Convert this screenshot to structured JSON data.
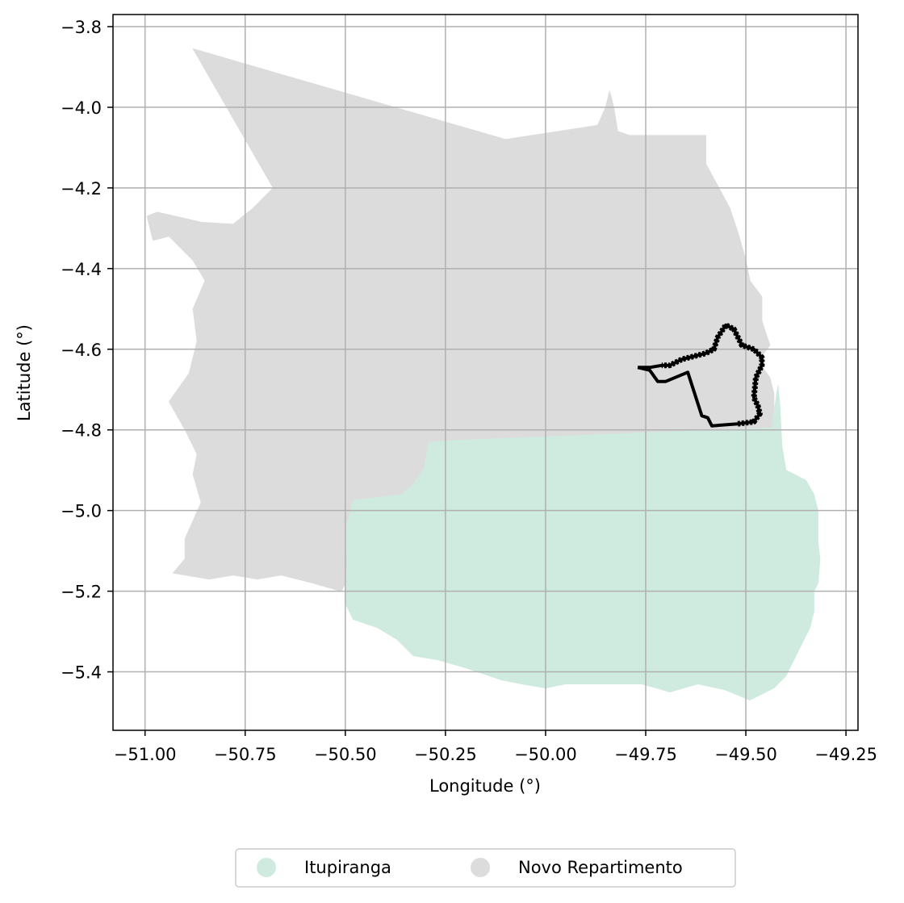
{
  "chart_data": {
    "type": "map",
    "xlabel": "Longitude (°)",
    "ylabel": "Latitude (°)",
    "xlim": [
      -51.08,
      -49.22
    ],
    "ylim": [
      -5.545,
      -3.77
    ],
    "grid": true,
    "x_ticks": [
      -51.0,
      -50.75,
      -50.5,
      -50.25,
      -50.0,
      -49.75,
      -49.5,
      -49.25
    ],
    "x_tick_labels": [
      "−51.00",
      "−50.75",
      "−50.50",
      "−50.25",
      "−50.00",
      "−49.75",
      "−49.50",
      "−49.25"
    ],
    "y_ticks": [
      -3.8,
      -4.0,
      -4.2,
      -4.4,
      -4.6,
      -4.8,
      -5.0,
      -5.2,
      -5.4
    ],
    "y_tick_labels": [
      "−3.8",
      "−4.0",
      "−4.2",
      "−4.4",
      "−4.6",
      "−4.8",
      "−5.0",
      "−5.2",
      "−5.4"
    ],
    "legend_placement": "below",
    "legend": [
      {
        "label": "Itupiranga",
        "color": "#cfeadf"
      },
      {
        "label": "Novo Repartimento",
        "color": "#dcdcdc"
      }
    ],
    "regions": [
      {
        "name": "Novo Repartimento",
        "color": "#dcdcdc",
        "coords": [
          [
            -50.88,
            -3.855
          ],
          [
            -50.1,
            -4.08
          ],
          [
            -49.87,
            -4.045
          ],
          [
            -49.85,
            -4.0
          ],
          [
            -49.84,
            -3.96
          ],
          [
            -49.83,
            -4.0
          ],
          [
            -49.82,
            -4.06
          ],
          [
            -49.79,
            -4.07
          ],
          [
            -49.6,
            -4.07
          ],
          [
            -49.6,
            -4.14
          ],
          [
            -49.54,
            -4.25
          ],
          [
            -49.52,
            -4.31
          ],
          [
            -49.5,
            -4.38
          ],
          [
            -49.49,
            -4.43
          ],
          [
            -49.46,
            -4.47
          ],
          [
            -49.46,
            -4.53
          ],
          [
            -49.44,
            -4.59
          ],
          [
            -49.47,
            -4.63
          ],
          [
            -49.44,
            -4.67
          ],
          [
            -49.43,
            -4.71
          ],
          [
            -49.43,
            -4.75
          ],
          [
            -49.435,
            -4.795
          ],
          [
            -50.2,
            -4.825
          ],
          [
            -50.29,
            -4.83
          ],
          [
            -50.305,
            -4.9
          ],
          [
            -50.33,
            -4.935
          ],
          [
            -50.36,
            -4.96
          ],
          [
            -50.48,
            -4.975
          ],
          [
            -50.5,
            -5.05
          ],
          [
            -50.495,
            -5.13
          ],
          [
            -50.5,
            -5.18
          ],
          [
            -50.51,
            -5.2
          ],
          [
            -50.58,
            -5.18
          ],
          [
            -50.66,
            -5.16
          ],
          [
            -50.72,
            -5.17
          ],
          [
            -50.78,
            -5.16
          ],
          [
            -50.84,
            -5.17
          ],
          [
            -50.93,
            -5.155
          ],
          [
            -50.9,
            -5.12
          ],
          [
            -50.9,
            -5.07
          ],
          [
            -50.86,
            -4.98
          ],
          [
            -50.88,
            -4.91
          ],
          [
            -50.87,
            -4.86
          ],
          [
            -50.9,
            -4.8
          ],
          [
            -50.94,
            -4.73
          ],
          [
            -50.89,
            -4.66
          ],
          [
            -50.87,
            -4.58
          ],
          [
            -50.88,
            -4.5
          ],
          [
            -50.85,
            -4.43
          ],
          [
            -50.88,
            -4.38
          ],
          [
            -50.94,
            -4.32
          ],
          [
            -50.98,
            -4.33
          ],
          [
            -50.995,
            -4.27
          ],
          [
            -50.97,
            -4.26
          ],
          [
            -50.86,
            -4.285
          ],
          [
            -50.78,
            -4.29
          ],
          [
            -50.73,
            -4.25
          ],
          [
            -50.68,
            -4.2
          ]
        ]
      },
      {
        "name": "Itupiranga",
        "color": "#cfeadf",
        "coords": [
          [
            -50.2,
            -4.825
          ],
          [
            -49.435,
            -4.795
          ],
          [
            -49.42,
            -4.69
          ],
          [
            -49.415,
            -4.74
          ],
          [
            -49.41,
            -4.84
          ],
          [
            -49.4,
            -4.9
          ],
          [
            -49.35,
            -4.925
          ],
          [
            -49.33,
            -4.96
          ],
          [
            -49.32,
            -5.0
          ],
          [
            -49.32,
            -5.08
          ],
          [
            -49.315,
            -5.12
          ],
          [
            -49.32,
            -5.18
          ],
          [
            -49.33,
            -5.2
          ],
          [
            -49.33,
            -5.25
          ],
          [
            -49.34,
            -5.29
          ],
          [
            -49.36,
            -5.33
          ],
          [
            -49.38,
            -5.37
          ],
          [
            -49.4,
            -5.41
          ],
          [
            -49.43,
            -5.44
          ],
          [
            -49.49,
            -5.47
          ],
          [
            -49.55,
            -5.445
          ],
          [
            -49.62,
            -5.43
          ],
          [
            -49.69,
            -5.45
          ],
          [
            -49.76,
            -5.43
          ],
          [
            -49.82,
            -5.43
          ],
          [
            -49.89,
            -5.43
          ],
          [
            -49.95,
            -5.43
          ],
          [
            -50.0,
            -5.44
          ],
          [
            -50.06,
            -5.43
          ],
          [
            -50.11,
            -5.42
          ],
          [
            -50.2,
            -5.39
          ],
          [
            -50.27,
            -5.37
          ],
          [
            -50.33,
            -5.36
          ],
          [
            -50.37,
            -5.32
          ],
          [
            -50.42,
            -5.29
          ],
          [
            -50.48,
            -5.27
          ],
          [
            -50.5,
            -5.23
          ],
          [
            -50.5,
            -5.18
          ],
          [
            -50.495,
            -5.13
          ],
          [
            -50.5,
            -5.05
          ],
          [
            -50.48,
            -4.975
          ],
          [
            -50.36,
            -4.96
          ],
          [
            -50.33,
            -4.935
          ],
          [
            -50.305,
            -4.9
          ],
          [
            -50.29,
            -4.83
          ]
        ]
      }
    ],
    "boundary_line": {
      "color": "#000000",
      "coords": [
        [
          -49.77,
          -4.645
        ],
        [
          -49.74,
          -4.652
        ],
        [
          -49.72,
          -4.68
        ],
        [
          -49.7,
          -4.68
        ],
        [
          -49.645,
          -4.657
        ],
        [
          -49.61,
          -4.765
        ],
        [
          -49.595,
          -4.77
        ],
        [
          -49.585,
          -4.79
        ],
        [
          -49.52,
          -4.785
        ],
        [
          -49.48,
          -4.78
        ],
        [
          -49.465,
          -4.76
        ],
        [
          -49.47,
          -4.74
        ],
        [
          -49.48,
          -4.72
        ],
        [
          -49.475,
          -4.67
        ],
        [
          -49.46,
          -4.64
        ],
        [
          -49.46,
          -4.62
        ],
        [
          -49.48,
          -4.6
        ],
        [
          -49.51,
          -4.59
        ],
        [
          -49.53,
          -4.55
        ],
        [
          -49.55,
          -4.54
        ],
        [
          -49.57,
          -4.57
        ],
        [
          -49.58,
          -4.6
        ],
        [
          -49.6,
          -4.61
        ],
        [
          -49.64,
          -4.62
        ],
        [
          -49.66,
          -4.625
        ],
        [
          -49.69,
          -4.64
        ],
        [
          -49.71,
          -4.64
        ],
        [
          -49.74,
          -4.645
        ],
        [
          -49.77,
          -4.645
        ]
      ]
    }
  }
}
